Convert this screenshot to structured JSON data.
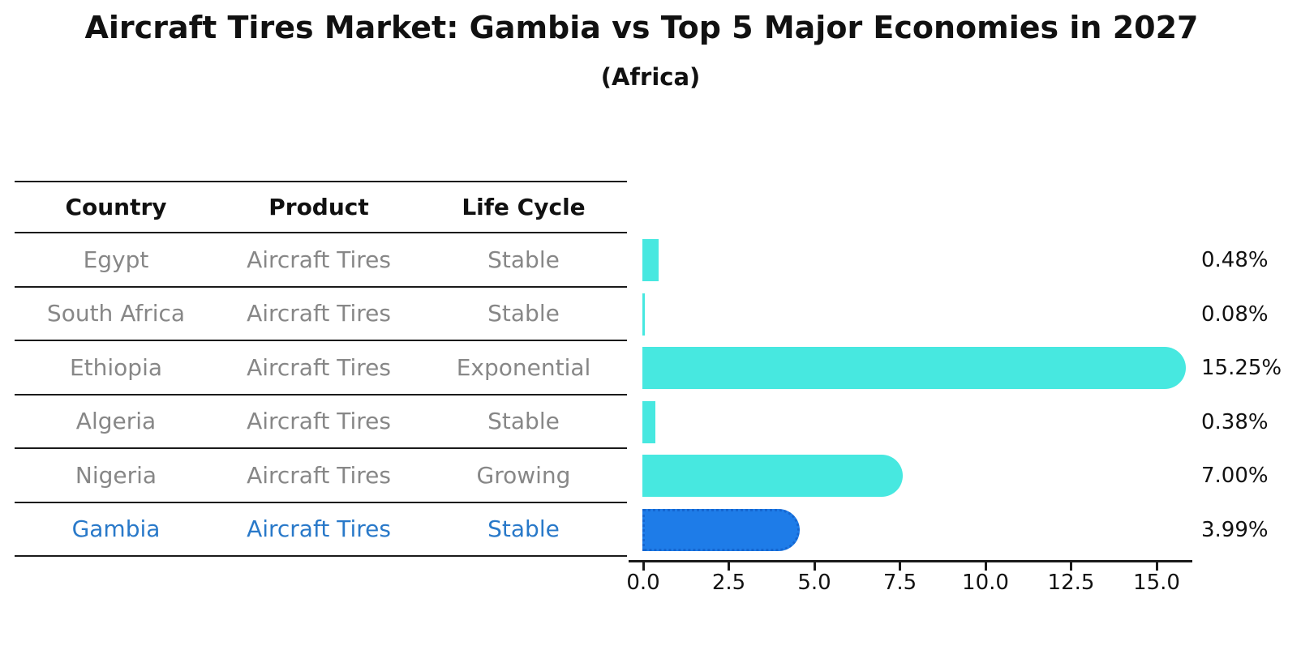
{
  "title": "Aircraft Tires Market: Gambia vs Top 5 Major Economies in 2027",
  "subtitle": "(Africa)",
  "table": {
    "headers": [
      "Country",
      "Product",
      "Life Cycle"
    ],
    "rows": [
      {
        "country": "Egypt",
        "product": "Aircraft Tires",
        "life_cycle": "Stable",
        "highlight": false
      },
      {
        "country": "South Africa",
        "product": "Aircraft Tires",
        "life_cycle": "Stable",
        "highlight": false
      },
      {
        "country": "Ethiopia",
        "product": "Aircraft Tires",
        "life_cycle": "Exponential",
        "highlight": false
      },
      {
        "country": "Algeria",
        "product": "Aircraft Tires",
        "life_cycle": "Stable",
        "highlight": false
      },
      {
        "country": "Nigeria",
        "product": "Aircraft Tires",
        "life_cycle": "Growing",
        "highlight": false
      },
      {
        "country": "Gambia",
        "product": "Aircraft Tires",
        "life_cycle": "Stable",
        "highlight": true
      }
    ]
  },
  "chart_data": {
    "type": "bar",
    "orientation": "horizontal",
    "title": "Aircraft Tires Market: Gambia vs Top 5 Major Economies in 2027",
    "subtitle": "(Africa)",
    "categories": [
      "Egypt",
      "South Africa",
      "Ethiopia",
      "Algeria",
      "Nigeria",
      "Gambia"
    ],
    "values": [
      0.48,
      0.08,
      15.25,
      0.38,
      7.0,
      3.99
    ],
    "value_labels": [
      "0.48%",
      "0.08%",
      "15.25%",
      "0.38%",
      "7.00%",
      "3.99%"
    ],
    "x_ticks": [
      "0.0",
      "2.5",
      "5.0",
      "7.5",
      "10.0",
      "12.5",
      "15.0"
    ],
    "x_tick_values": [
      0,
      2.5,
      5,
      7.5,
      10,
      12.5,
      15
    ],
    "xlim": [
      0,
      16
    ],
    "xlabel": "",
    "ylabel": "",
    "grid": false,
    "legend": false,
    "highlight_index": 5
  },
  "colors": {
    "bar": "#47E8E0",
    "highlight_bar": "#1E7CE8",
    "highlight_bar_border": "#1566D0",
    "highlight_text": "#2979C9",
    "table_text": "#878787",
    "header_text": "#111111",
    "value_text": "#111111",
    "axis": "#1a1a1a"
  }
}
